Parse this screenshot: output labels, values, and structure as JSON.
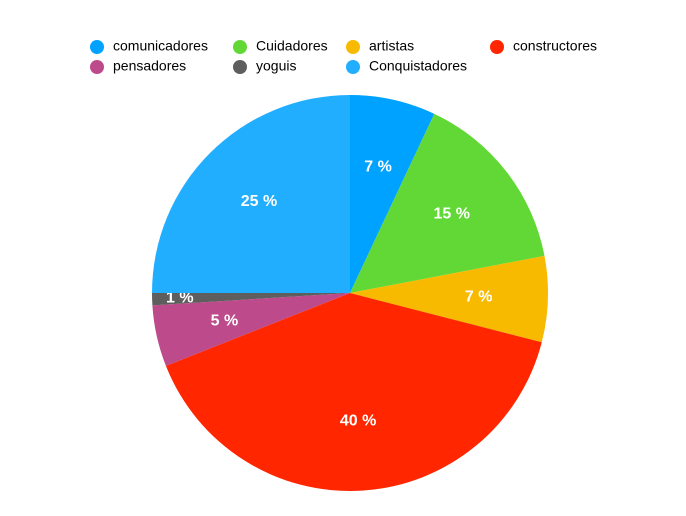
{
  "chart_data": {
    "type": "pie",
    "categories": [
      "comunicadores",
      "Cuidadores",
      "artistas",
      "constructores",
      "pensadores",
      "yoguis",
      "Conquistadores"
    ],
    "values": [
      7,
      15,
      7,
      40,
      5,
      1,
      25
    ],
    "value_labels": [
      "7 %",
      "15 %",
      "7 %",
      "40 %",
      "5 %",
      "1 %",
      "25 %"
    ],
    "colors": [
      "#00a2ff",
      "#61d836",
      "#f8ba00",
      "#ff2600",
      "#bd4a8a",
      "#5e5e5e",
      "#22aeff"
    ],
    "legend": "top"
  }
}
